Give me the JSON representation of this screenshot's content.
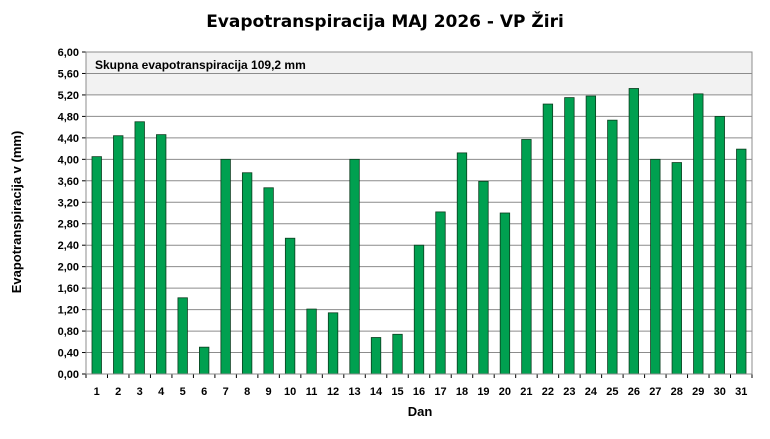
{
  "chart_data": {
    "type": "bar",
    "title": "Evapotranspiracija  MAJ 2026 - VP Žiri",
    "xlabel": "Dan",
    "ylabel": "Evapotranspiracija v  (mm)",
    "annotation": "Skupna evapotranspiracija 109,2 mm",
    "categories": [
      "1",
      "2",
      "3",
      "4",
      "5",
      "6",
      "7",
      "8",
      "9",
      "10",
      "11",
      "12",
      "13",
      "14",
      "15",
      "16",
      "17",
      "18",
      "19",
      "20",
      "21",
      "22",
      "23",
      "24",
      "25",
      "26",
      "27",
      "28",
      "29",
      "30",
      "31"
    ],
    "values": [
      4.05,
      4.44,
      4.7,
      4.46,
      1.42,
      0.5,
      4.0,
      3.75,
      3.47,
      2.53,
      1.21,
      1.14,
      4.0,
      0.68,
      0.74,
      2.4,
      3.02,
      4.12,
      3.59,
      3.0,
      4.37,
      5.03,
      5.15,
      5.18,
      4.73,
      5.32,
      4.0,
      3.94,
      5.22,
      4.8,
      4.19
    ],
    "ylim": [
      0,
      6
    ],
    "y_ticks": [
      "0,00",
      "0,40",
      "0,80",
      "1,20",
      "1,60",
      "2,00",
      "2,40",
      "2,80",
      "3,20",
      "3,60",
      "4,00",
      "4,40",
      "4,80",
      "5,20",
      "5,60",
      "6,00"
    ],
    "grid": true,
    "bar_color": "#00A050",
    "bar_edge_color": "#0B3D1E",
    "plot_background": "#FFFFFF",
    "band_background": "#F2F2F2"
  }
}
